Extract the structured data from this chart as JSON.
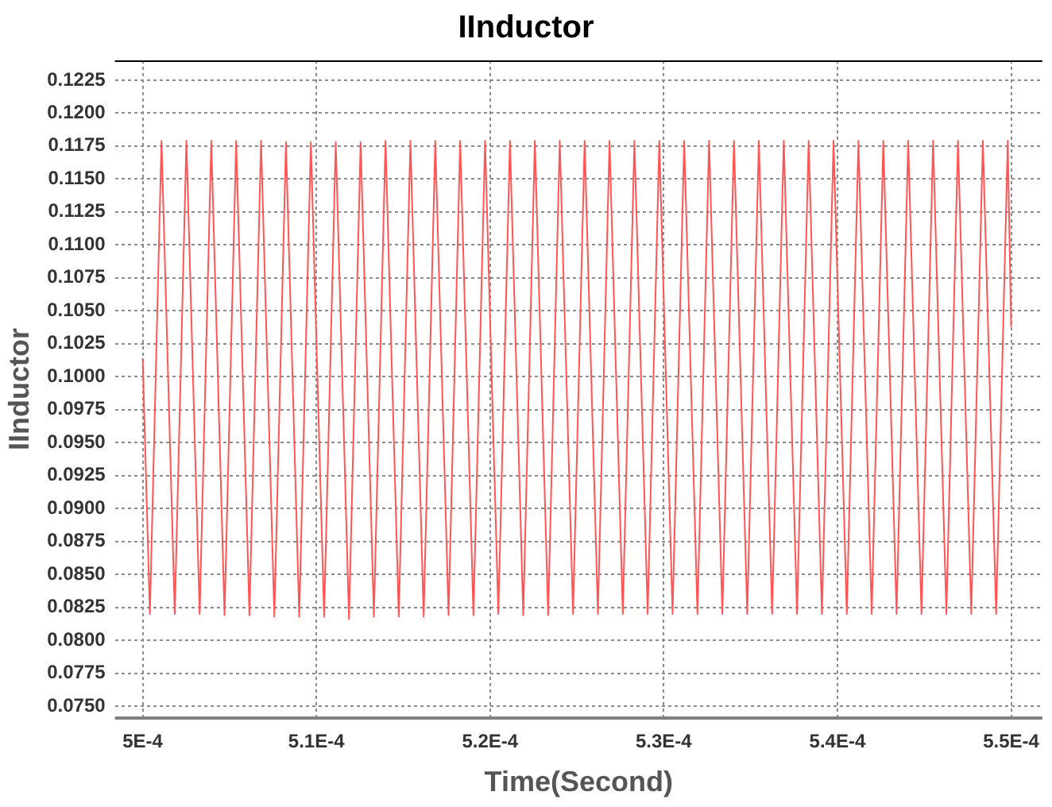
{
  "chart_data": {
    "type": "line",
    "title": "IInductor",
    "xlabel": "Time(Second)",
    "ylabel": "IInductor",
    "grid": true,
    "legend": false,
    "marker": "none",
    "line_style": "solid",
    "xlim": [
      0.0004984,
      0.0005518
    ],
    "xticks": [
      {
        "value": 0.0005,
        "label": "5E-4"
      },
      {
        "value": 0.00051,
        "label": "5.1E-4"
      },
      {
        "value": 0.00052,
        "label": "5.2E-4"
      },
      {
        "value": 0.00053,
        "label": "5.3E-4"
      },
      {
        "value": 0.00054,
        "label": "5.4E-4"
      },
      {
        "value": 0.00055,
        "label": "5.5E-4"
      }
    ],
    "ylim": [
      0.0741,
      0.124
    ],
    "yticks": [
      {
        "value": 0.075,
        "label": "0.0750"
      },
      0.0775,
      {
        "value": 0.08,
        "label": "0.0800"
      },
      0.0825,
      {
        "value": 0.085,
        "label": "0.0850"
      },
      0.0875,
      {
        "value": 0.09,
        "label": "0.0900"
      },
      0.0925,
      {
        "value": 0.095,
        "label": "0.0950"
      },
      0.0975,
      {
        "value": 0.1,
        "label": "0.1000"
      },
      0.1025,
      {
        "value": 0.105,
        "label": "0.1050"
      },
      0.1075,
      {
        "value": 0.11,
        "label": "0.1100"
      },
      0.1125,
      {
        "value": 0.115,
        "label": "0.1150"
      },
      0.1175,
      {
        "value": 0.12,
        "label": "0.1200"
      },
      0.1225
    ],
    "series": [
      {
        "color": "#ff5555",
        "x": [
          0.0005,
          0.000500414,
          0.000501083,
          0.000501847,
          0.000502516,
          0.00050328,
          0.000503949,
          0.000504713,
          0.000505382,
          0.000506146,
          0.000506815,
          0.00050758,
          0.000508249,
          0.000509013,
          0.000509682,
          0.000510446,
          0.000511115,
          0.000511879,
          0.000512548,
          0.000513312,
          0.000513981,
          0.000514745,
          0.000515414,
          0.000516178,
          0.000516847,
          0.000517611,
          0.00051828,
          0.000519044,
          0.000519713,
          0.000520477,
          0.000521146,
          0.000521911,
          0.00052258,
          0.000523344,
          0.000524013,
          0.000524777,
          0.000525446,
          0.00052621,
          0.000526879,
          0.000527643,
          0.000528312,
          0.000529076,
          0.000529745,
          0.000530509,
          0.000531178,
          0.000531942,
          0.000532611,
          0.000533375,
          0.000534044,
          0.000534808,
          0.000535477,
          0.000536242,
          0.000536911,
          0.000537675,
          0.000538344,
          0.000539108,
          0.000539777,
          0.000540541,
          0.00054121,
          0.000541974,
          0.000542643,
          0.000543407,
          0.000544076,
          0.00054484,
          0.000545509,
          0.000546273,
          0.000546942,
          0.000547706,
          0.000548375,
          0.000549139,
          0.000549808,
          0.00055
        ],
        "values": [
          0.1014,
          0.082,
          0.1179,
          0.082,
          0.1179,
          0.082,
          0.1179,
          0.0819,
          0.1179,
          0.0819,
          0.1179,
          0.0818,
          0.1178,
          0.0818,
          0.1178,
          0.0818,
          0.1178,
          0.0816,
          0.1178,
          0.0818,
          0.1179,
          0.0818,
          0.1179,
          0.0818,
          0.1179,
          0.0819,
          0.1179,
          0.0819,
          0.1179,
          0.082,
          0.1179,
          0.0819,
          0.1179,
          0.0819,
          0.1179,
          0.082,
          0.1179,
          0.082,
          0.1179,
          0.082,
          0.1179,
          0.082,
          0.1179,
          0.082,
          0.1179,
          0.082,
          0.1179,
          0.082,
          0.1179,
          0.082,
          0.1179,
          0.082,
          0.1179,
          0.082,
          0.1179,
          0.082,
          0.1179,
          0.082,
          0.1179,
          0.082,
          0.1179,
          0.082,
          0.1179,
          0.082,
          0.1179,
          0.082,
          0.1179,
          0.082,
          0.1179,
          0.082,
          0.1179,
          0.1038
        ]
      }
    ]
  }
}
